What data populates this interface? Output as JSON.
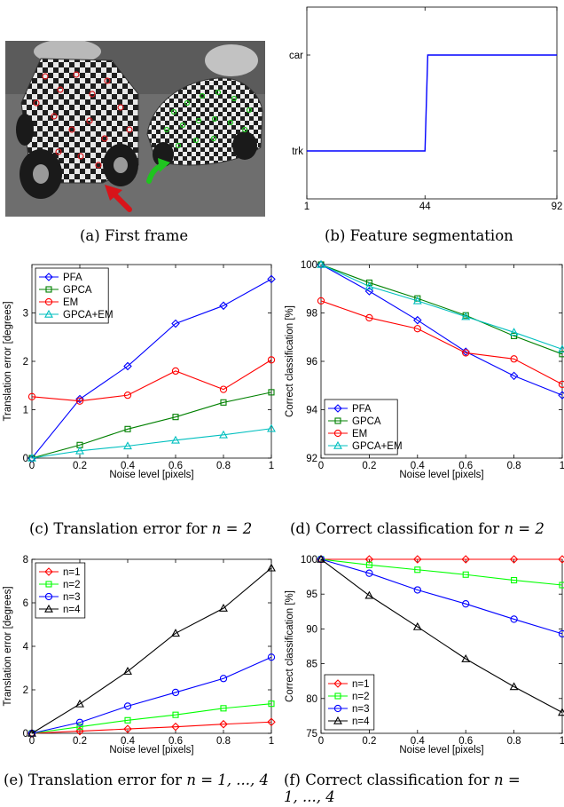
{
  "captions": {
    "a": "(a) First frame",
    "b": "(b) Feature segmentation",
    "c_prefix": "(c) Translation error for ",
    "c_math": "n = 2",
    "d_prefix": "(d) Correct classification for ",
    "d_math": "n = 2",
    "e_prefix": "(e) Translation error for ",
    "e_math": "n = 1, ..., 4",
    "f_prefix": "(f) Correct classification for ",
    "f_math_1": "n =",
    "f_math_2": "1, ..., 4"
  },
  "photo": {
    "arrow_red": "#d8141a",
    "arrow_green": "#1fc41f"
  },
  "chart_data": [
    {
      "id": "b",
      "type": "line",
      "title": "",
      "xlabel": "",
      "ylabel": "",
      "xticks": [
        "1",
        "44",
        "92"
      ],
      "xtick_values": [
        1,
        44,
        92
      ],
      "yticks": [
        "trk",
        "car"
      ],
      "xlim": [
        1,
        92
      ],
      "ylim": [
        -0.5,
        1.5
      ],
      "grid": false,
      "series": [
        {
          "color": "#0000ff",
          "x": [
            1,
            44,
            45,
            92
          ],
          "y": [
            0,
            0,
            1,
            1
          ]
        }
      ]
    },
    {
      "id": "c",
      "type": "line",
      "title": "",
      "xlabel": "Noise level [pixels]",
      "ylabel": "Translation error [degrees]",
      "x": [
        0,
        0.2,
        0.4,
        0.6,
        0.8,
        1
      ],
      "xticks": [
        "0",
        "0.2",
        "0.4",
        "0.6",
        "0.8",
        "1"
      ],
      "yticks": [
        "0",
        "1",
        "2",
        "3"
      ],
      "ytick_values": [
        0,
        1,
        2,
        3
      ],
      "xlim": [
        0,
        1
      ],
      "ylim": [
        0,
        4
      ],
      "grid": false,
      "legend_position": "top-left",
      "series": [
        {
          "name": "PFA",
          "color": "#0000ff",
          "marker": "diamond",
          "values": [
            0,
            1.22,
            1.9,
            2.78,
            3.15,
            3.7
          ]
        },
        {
          "name": "GPCA",
          "color": "#008000",
          "marker": "square",
          "values": [
            0,
            0.27,
            0.6,
            0.85,
            1.15,
            1.36
          ]
        },
        {
          "name": "EM",
          "color": "#ff0000",
          "marker": "circle",
          "values": [
            1.27,
            1.18,
            1.3,
            1.8,
            1.42,
            2.03
          ]
        },
        {
          "name": "GPCA+EM",
          "color": "#00bfbf",
          "marker": "triangle",
          "values": [
            0,
            0.15,
            0.25,
            0.37,
            0.48,
            0.61
          ]
        }
      ]
    },
    {
      "id": "d",
      "type": "line",
      "title": "",
      "xlabel": "Noise level [pixels]",
      "ylabel": "Correct classification [%]",
      "x": [
        0,
        0.2,
        0.4,
        0.6,
        0.8,
        1
      ],
      "xticks": [
        "0",
        "0.2",
        "0.4",
        "0.6",
        "0.8",
        "1"
      ],
      "yticks": [
        "92",
        "94",
        "96",
        "98",
        "100"
      ],
      "ytick_values": [
        92,
        94,
        96,
        98,
        100
      ],
      "xlim": [
        0,
        1
      ],
      "ylim": [
        92,
        100
      ],
      "grid": false,
      "legend_position": "bottom-left",
      "series": [
        {
          "name": "PFA",
          "color": "#0000ff",
          "marker": "diamond",
          "values": [
            100,
            98.9,
            97.7,
            96.4,
            95.4,
            94.6
          ]
        },
        {
          "name": "GPCA",
          "color": "#008000",
          "marker": "square",
          "values": [
            100,
            99.25,
            98.6,
            97.9,
            97.05,
            96.3
          ]
        },
        {
          "name": "EM",
          "color": "#ff0000",
          "marker": "circle",
          "values": [
            98.5,
            97.8,
            97.35,
            96.35,
            96.1,
            95.05
          ]
        },
        {
          "name": "GPCA+EM",
          "color": "#00bfbf",
          "marker": "triangle",
          "values": [
            100,
            99.1,
            98.5,
            97.85,
            97.2,
            96.5
          ]
        }
      ]
    },
    {
      "id": "e",
      "type": "line",
      "title": "",
      "xlabel": "Noise level [pixels]",
      "ylabel": "Translation error [degrees]",
      "x": [
        0,
        0.2,
        0.4,
        0.6,
        0.8,
        1
      ],
      "xticks": [
        "0",
        "0.2",
        "0.4",
        "0.6",
        "0.8",
        "1"
      ],
      "yticks": [
        "0",
        "2",
        "4",
        "6",
        "8"
      ],
      "ytick_values": [
        0,
        2,
        4,
        6,
        8
      ],
      "xlim": [
        0,
        1
      ],
      "ylim": [
        0,
        8
      ],
      "grid": false,
      "legend_position": "top-left",
      "series": [
        {
          "name": "n=1",
          "color": "#ff0000",
          "marker": "diamond",
          "values": [
            0,
            0.1,
            0.2,
            0.3,
            0.42,
            0.52
          ]
        },
        {
          "name": "n=2",
          "color": "#00ff00",
          "marker": "square",
          "values": [
            0,
            0.3,
            0.6,
            0.85,
            1.15,
            1.36
          ]
        },
        {
          "name": "n=3",
          "color": "#0000ff",
          "marker": "circle",
          "values": [
            0,
            0.5,
            1.25,
            1.88,
            2.52,
            3.5
          ]
        },
        {
          "name": "n=4",
          "color": "#000000",
          "marker": "triangle",
          "values": [
            0,
            1.35,
            2.85,
            4.6,
            5.75,
            7.6
          ]
        }
      ]
    },
    {
      "id": "f",
      "type": "line",
      "title": "",
      "xlabel": "Noise level [pixels]",
      "ylabel": "Correct classification [%]",
      "x": [
        0,
        0.2,
        0.4,
        0.6,
        0.8,
        1
      ],
      "xticks": [
        "0",
        "0.2",
        "0.4",
        "0.6",
        "0.8",
        "1"
      ],
      "yticks": [
        "75",
        "80",
        "85",
        "90",
        "95",
        "100"
      ],
      "ytick_values": [
        75,
        80,
        85,
        90,
        95,
        100
      ],
      "xlim": [
        0,
        1
      ],
      "ylim": [
        75,
        100
      ],
      "grid": false,
      "legend_position": "bottom-left",
      "series": [
        {
          "name": "n=1",
          "color": "#ff0000",
          "marker": "diamond",
          "values": [
            100,
            100,
            100,
            100,
            100,
            100
          ]
        },
        {
          "name": "n=2",
          "color": "#00ff00",
          "marker": "square",
          "values": [
            100,
            99.2,
            98.5,
            97.8,
            97,
            96.3
          ]
        },
        {
          "name": "n=3",
          "color": "#0000ff",
          "marker": "circle",
          "values": [
            100,
            98,
            95.6,
            93.6,
            91.4,
            89.3
          ]
        },
        {
          "name": "n=4",
          "color": "#000000",
          "marker": "triangle",
          "values": [
            100,
            94.8,
            90.3,
            85.7,
            81.7,
            78
          ]
        }
      ]
    }
  ]
}
